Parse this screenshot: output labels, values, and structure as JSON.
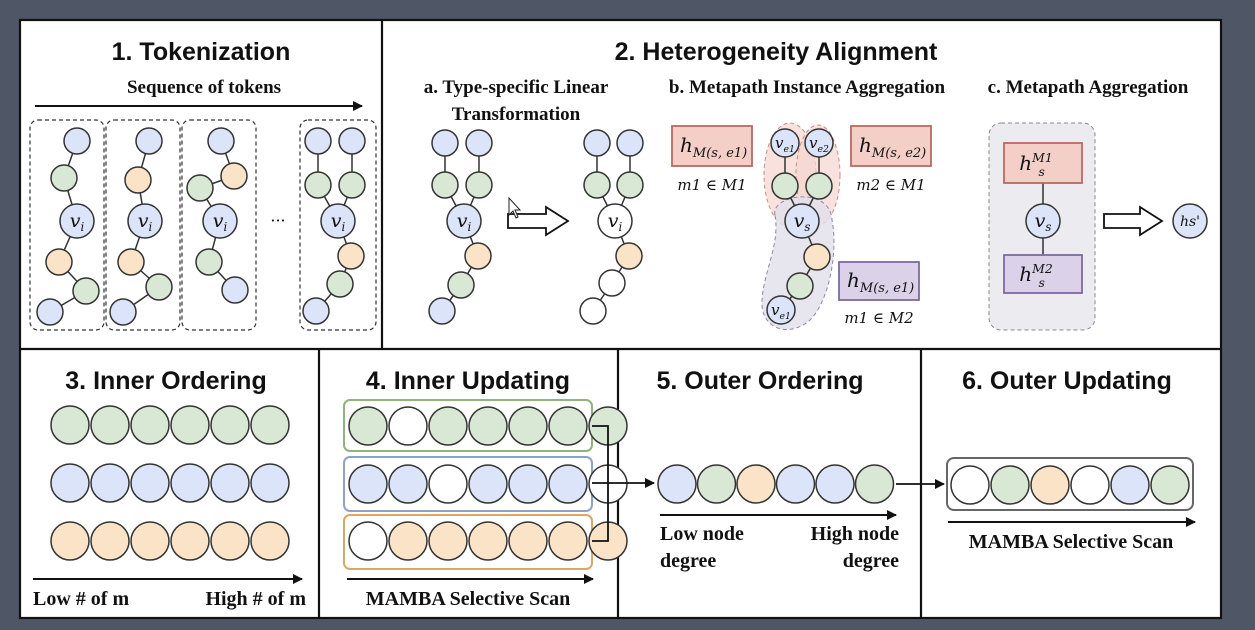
{
  "colors": {
    "blue": "#dbe4f8",
    "green": "#d9e8d4",
    "orange": "#fbe3c8",
    "white": "#ffffff",
    "pink_box": "#f3cfc7",
    "pink_border": "#b86a60",
    "purple_box": "#dbd2ea",
    "purple_border": "#7f6aa0",
    "page_background": "#4f5766"
  },
  "sections": {
    "s1": {
      "title": "1. Tokenization",
      "subtitle": "Sequence of tokens",
      "dots": "···"
    },
    "s2": {
      "title": "2. Heterogeneity Alignment",
      "a_line1": "a. Type-specific Linear",
      "a_line2": "Transformation",
      "b": "b. Metapath Instance Aggregation",
      "c": "c. Metapath Aggregation"
    },
    "s3": {
      "title": "3. Inner Ordering",
      "low": "Low  # of m",
      "high": "High  # of m"
    },
    "s4": {
      "title": "4. Inner Updating",
      "axis": "MAMBA Selective Scan"
    },
    "s5": {
      "title": "5. Outer Ordering",
      "low1": "Low node",
      "low2": "degree",
      "high1": "High node",
      "high2": "degree"
    },
    "s6": {
      "title": "6. Outer Updating",
      "axis": "MAMBA Selective Scan"
    }
  },
  "math": {
    "vi": "v",
    "vi_sub": "i",
    "vs": "v",
    "vs_sub": "s",
    "ve1": "v",
    "ve1_sub": "e1",
    "ve2": "v",
    "ve2_sub": "e2",
    "h_pink1": "h",
    "h_pink1_sub": "M(s, e1)",
    "h_pink2": "h",
    "h_pink2_sub": "M(s, e2)",
    "h_purple": "h",
    "h_purple_sub": "M(s, e1)",
    "m1_in_M1": "m1 ∈ M1",
    "m2_in_M1": "m2 ∈ M1",
    "m1_in_M2": "m1 ∈ M2",
    "hs_M1": "h",
    "hs_M1_sub": "s",
    "hs_M1_sup": "M1",
    "hs_M2": "h",
    "hs_M2_sub": "s",
    "hs_M2_sup": "M2",
    "hs_prime": "hs'"
  },
  "rows": {
    "s3": [
      [
        "green",
        "green",
        "green",
        "green",
        "green",
        "green"
      ],
      [
        "blue",
        "blue",
        "blue",
        "blue",
        "blue",
        "blue"
      ],
      [
        "orange",
        "orange",
        "orange",
        "orange",
        "orange",
        "orange"
      ]
    ],
    "s4": [
      [
        "green",
        "white",
        "green",
        "green",
        "green",
        "green",
        "green"
      ],
      [
        "blue",
        "blue",
        "white",
        "blue",
        "blue",
        "blue",
        "white"
      ],
      [
        "white",
        "orange",
        "orange",
        "orange",
        "orange",
        "orange",
        "orange"
      ]
    ],
    "s5": [
      "blue",
      "green",
      "orange",
      "blue",
      "blue",
      "green"
    ],
    "s6": [
      "white",
      "green",
      "orange",
      "white",
      "blue",
      "green"
    ]
  }
}
